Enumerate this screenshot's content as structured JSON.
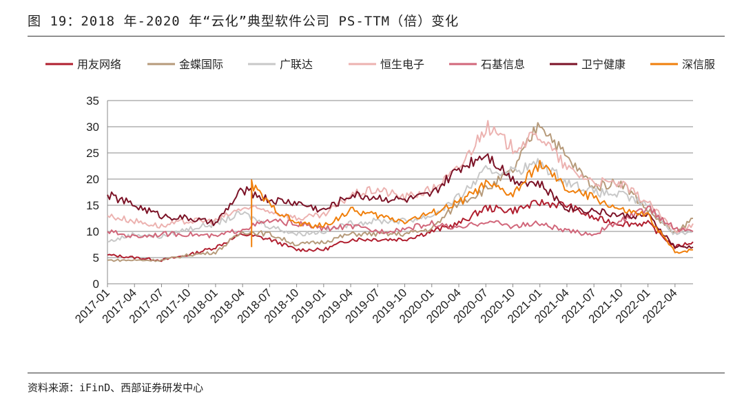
{
  "figure_title": "图 19：2018 年-2020 年“云化”典型软件公司 PS-TTM（倍）变化",
  "source_note": "资料来源：iFinD、西部证券研发中心",
  "chart_data": {
    "type": "line",
    "title": "",
    "xlabel": "",
    "ylabel": "",
    "ylim": [
      0,
      35
    ],
    "yticks": [
      0,
      5,
      10,
      15,
      20,
      25,
      30,
      35
    ],
    "xticks": [
      "2017-01",
      "2017-04",
      "2017-07",
      "2017-10",
      "2018-01",
      "2018-04",
      "2018-07",
      "2018-10",
      "2019-01",
      "2019-04",
      "2019-07",
      "2019-10",
      "2020-01",
      "2020-04",
      "2020-07",
      "2020-10",
      "2021-01",
      "2021-04",
      "2021-07",
      "2021-10",
      "2022-01",
      "2022-04"
    ],
    "x_end": "2022-06",
    "grid": true,
    "legend_position": "top",
    "series": [
      {
        "name": "用友网络",
        "color": "#b01e2e",
        "points": [
          [
            "2017-01",
            5.5
          ],
          [
            "2017-04",
            5.0
          ],
          [
            "2017-07",
            4.5
          ],
          [
            "2017-10",
            5.5
          ],
          [
            "2018-01",
            7.0
          ],
          [
            "2018-04",
            9.5
          ],
          [
            "2018-07",
            8.5
          ],
          [
            "2018-10",
            6.5
          ],
          [
            "2019-01",
            6.5
          ],
          [
            "2019-04",
            8.5
          ],
          [
            "2019-07",
            8.5
          ],
          [
            "2019-10",
            8.5
          ],
          [
            "2020-01",
            10.0
          ],
          [
            "2020-04",
            11.5
          ],
          [
            "2020-07",
            14.5
          ],
          [
            "2020-10",
            14.0
          ],
          [
            "2021-01",
            15.5
          ],
          [
            "2021-04",
            15.0
          ],
          [
            "2021-07",
            12.5
          ],
          [
            "2021-10",
            11.5
          ],
          [
            "2022-01",
            11.5
          ],
          [
            "2022-04",
            7.0
          ],
          [
            "2022-06",
            8.0
          ]
        ]
      },
      {
        "name": "金蝶国际",
        "color": "#b69a7a",
        "points": [
          [
            "2017-01",
            4.5
          ],
          [
            "2017-04",
            4.5
          ],
          [
            "2017-07",
            4.5
          ],
          [
            "2017-10",
            5.5
          ],
          [
            "2018-01",
            6.0
          ],
          [
            "2018-04",
            10.0
          ],
          [
            "2018-07",
            9.5
          ],
          [
            "2018-10",
            7.5
          ],
          [
            "2019-01",
            8.0
          ],
          [
            "2019-04",
            9.5
          ],
          [
            "2019-07",
            9.5
          ],
          [
            "2019-10",
            9.5
          ],
          [
            "2020-01",
            10.5
          ],
          [
            "2020-04",
            15.5
          ],
          [
            "2020-07",
            18.0
          ],
          [
            "2020-10",
            21.5
          ],
          [
            "2021-01",
            31.0
          ],
          [
            "2021-04",
            24.0
          ],
          [
            "2021-07",
            18.5
          ],
          [
            "2021-10",
            19.5
          ],
          [
            "2022-01",
            14.0
          ],
          [
            "2022-04",
            9.5
          ],
          [
            "2022-06",
            12.5
          ]
        ]
      },
      {
        "name": "广联达",
        "color": "#c8c8c8",
        "points": [
          [
            "2017-01",
            8.0
          ],
          [
            "2017-04",
            9.5
          ],
          [
            "2017-07",
            9.0
          ],
          [
            "2017-10",
            10.5
          ],
          [
            "2018-01",
            11.5
          ],
          [
            "2018-04",
            13.5
          ],
          [
            "2018-07",
            11.0
          ],
          [
            "2018-10",
            9.5
          ],
          [
            "2019-01",
            10.0
          ],
          [
            "2019-04",
            11.5
          ],
          [
            "2019-07",
            12.0
          ],
          [
            "2019-10",
            12.0
          ],
          [
            "2020-01",
            13.0
          ],
          [
            "2020-04",
            16.5
          ],
          [
            "2020-07",
            21.5
          ],
          [
            "2020-10",
            21.5
          ],
          [
            "2021-01",
            23.0
          ],
          [
            "2021-04",
            19.5
          ],
          [
            "2021-07",
            17.5
          ],
          [
            "2021-10",
            17.0
          ],
          [
            "2022-01",
            15.0
          ],
          [
            "2022-04",
            9.5
          ],
          [
            "2022-06",
            10.0
          ]
        ]
      },
      {
        "name": "恒生电子",
        "color": "#ecb2b0",
        "points": [
          [
            "2017-01",
            13.0
          ],
          [
            "2017-04",
            12.0
          ],
          [
            "2017-07",
            11.0
          ],
          [
            "2017-10",
            12.0
          ],
          [
            "2018-01",
            12.0
          ],
          [
            "2018-04",
            14.5
          ],
          [
            "2018-07",
            14.0
          ],
          [
            "2018-10",
            12.5
          ],
          [
            "2019-01",
            13.0
          ],
          [
            "2019-04",
            17.0
          ],
          [
            "2019-07",
            18.0
          ],
          [
            "2019-10",
            16.5
          ],
          [
            "2020-01",
            18.0
          ],
          [
            "2020-04",
            22.0
          ],
          [
            "2020-07",
            30.0
          ],
          [
            "2020-10",
            26.0
          ],
          [
            "2021-01",
            28.5
          ],
          [
            "2021-04",
            22.0
          ],
          [
            "2021-07",
            19.5
          ],
          [
            "2021-10",
            19.0
          ],
          [
            "2022-01",
            15.5
          ],
          [
            "2022-04",
            10.0
          ],
          [
            "2022-06",
            11.5
          ]
        ]
      },
      {
        "name": "石基信息",
        "color": "#d1667a",
        "points": [
          [
            "2017-01",
            10.0
          ],
          [
            "2017-04",
            9.0
          ],
          [
            "2017-07",
            9.5
          ],
          [
            "2017-10",
            9.5
          ],
          [
            "2018-01",
            9.0
          ],
          [
            "2018-04",
            10.5
          ],
          [
            "2018-07",
            12.0
          ],
          [
            "2018-10",
            11.5
          ],
          [
            "2019-01",
            10.5
          ],
          [
            "2019-04",
            11.0
          ],
          [
            "2019-07",
            10.0
          ],
          [
            "2019-10",
            10.5
          ],
          [
            "2020-01",
            11.5
          ],
          [
            "2020-04",
            10.5
          ],
          [
            "2020-07",
            12.0
          ],
          [
            "2020-10",
            11.0
          ],
          [
            "2021-01",
            11.5
          ],
          [
            "2021-04",
            10.0
          ],
          [
            "2021-07",
            9.5
          ],
          [
            "2021-10",
            12.0
          ],
          [
            "2022-01",
            14.5
          ],
          [
            "2022-04",
            10.5
          ],
          [
            "2022-06",
            10.0
          ]
        ]
      },
      {
        "name": "卫宁健康",
        "color": "#7b1226",
        "points": [
          [
            "2017-01",
            17.0
          ],
          [
            "2017-04",
            15.0
          ],
          [
            "2017-07",
            13.0
          ],
          [
            "2017-10",
            12.5
          ],
          [
            "2018-01",
            11.5
          ],
          [
            "2018-04",
            18.0
          ],
          [
            "2018-07",
            16.0
          ],
          [
            "2018-10",
            15.5
          ],
          [
            "2019-01",
            14.0
          ],
          [
            "2019-04",
            17.0
          ],
          [
            "2019-07",
            16.5
          ],
          [
            "2019-10",
            16.0
          ],
          [
            "2020-01",
            17.0
          ],
          [
            "2020-04",
            22.0
          ],
          [
            "2020-07",
            25.0
          ],
          [
            "2020-10",
            20.0
          ],
          [
            "2021-01",
            19.0
          ],
          [
            "2021-04",
            14.5
          ],
          [
            "2021-07",
            14.0
          ],
          [
            "2021-10",
            13.0
          ],
          [
            "2022-01",
            13.0
          ],
          [
            "2022-04",
            7.0
          ],
          [
            "2022-06",
            7.0
          ]
        ]
      },
      {
        "name": "深信服",
        "color": "#f07f0b",
        "points": [
          [
            "2018-05",
            7.0
          ],
          [
            "2018-05",
            19.0
          ],
          [
            "2018-07",
            15.0
          ],
          [
            "2018-10",
            11.5
          ],
          [
            "2019-01",
            11.0
          ],
          [
            "2019-04",
            14.0
          ],
          [
            "2019-07",
            13.0
          ],
          [
            "2019-10",
            12.0
          ],
          [
            "2020-01",
            13.5
          ],
          [
            "2020-04",
            15.5
          ],
          [
            "2020-07",
            19.0
          ],
          [
            "2020-10",
            17.0
          ],
          [
            "2021-01",
            23.0
          ],
          [
            "2021-04",
            18.0
          ],
          [
            "2021-07",
            16.5
          ],
          [
            "2021-10",
            14.0
          ],
          [
            "2022-01",
            13.0
          ],
          [
            "2022-04",
            6.0
          ],
          [
            "2022-06",
            6.5
          ]
        ]
      }
    ]
  }
}
